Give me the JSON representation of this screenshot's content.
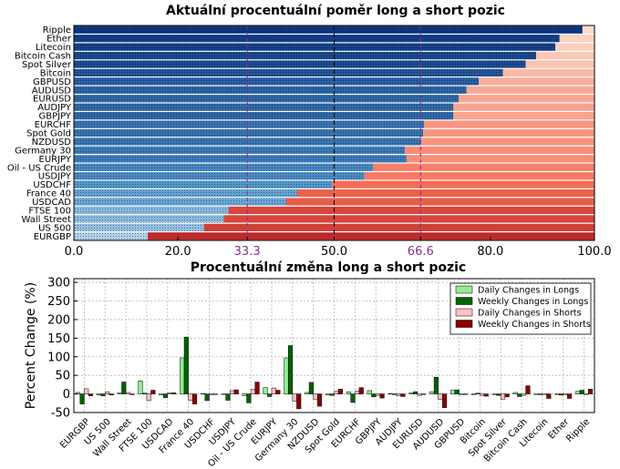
{
  "chart_data": [
    {
      "type": "bar",
      "orientation": "horizontal-stacked",
      "title": "Aktuální procentuální poměr long a short pozic",
      "categories": [
        "Ripple",
        "Ether",
        "Litecoin",
        "Bitcoin Cash",
        "Spot Silver",
        "Bitcoin",
        "GBPUSD",
        "AUDUSD",
        "EURUSD",
        "AUDJPY",
        "GBPJPY",
        "EURCHF",
        "Spot Gold",
        "NZDUSD",
        "Germany 30",
        "EURJPY",
        "Oil - US Crude",
        "USDJPY",
        "USDCHF",
        "France 40",
        "USDCAD",
        "FTSE 100",
        "Wall Street",
        "US 500",
        "EURGBP"
      ],
      "long_percent": [
        97.7,
        93.3,
        92.5,
        88.8,
        86.8,
        82.4,
        77.8,
        75.4,
        73.9,
        72.9,
        72.9,
        67.3,
        67.1,
        66.7,
        63.6,
        63.9,
        57.5,
        55.8,
        49.6,
        42.9,
        40.8,
        29.7,
        28.8,
        25.0,
        14.2
      ],
      "xlim": [
        0,
        100
      ],
      "xticks": [
        "0.0",
        "20.0",
        "33.3",
        "50.0",
        "66.6",
        "80.0",
        "100.0"
      ],
      "reference_lines": [
        33.3,
        50.0,
        66.6
      ],
      "grid": false
    },
    {
      "type": "bar",
      "title": "Procentuální změna long a short pozic",
      "ylabel": "Percent Change (%)",
      "categories": [
        "EURGBP",
        "US 500",
        "Wall Street",
        "FTSE 100",
        "USDCAD",
        "France 40",
        "USDCHF",
        "USDJPY",
        "Oil - US Crude",
        "EURJPY",
        "Germany 30",
        "NZDUSD",
        "Spot Gold",
        "EURCHF",
        "GBPJPY",
        "AUDJPY",
        "EURUSD",
        "AUDUSD",
        "GBPUSD",
        "Bitcoin",
        "Spot Silver",
        "Bitcoin Cash",
        "Litecoin",
        "Ether",
        "Ripple"
      ],
      "ylim": [
        -50,
        310
      ],
      "yticks": [
        -50,
        0,
        50,
        100,
        150,
        200,
        250,
        300
      ],
      "grid": true,
      "legend_position": "top-right",
      "series": [
        {
          "name": "Daily Changes in Longs",
          "color": "#90ee90",
          "values": [
            4,
            -3,
            3,
            35,
            -3,
            97,
            1,
            -1,
            -5,
            17,
            97,
            4,
            -3,
            6,
            9,
            1,
            3,
            6,
            10,
            -2,
            -2,
            4,
            0,
            0,
            7
          ]
        },
        {
          "name": "Weekly Changes in Longs",
          "color": "#006400",
          "values": [
            -27,
            -5,
            32,
            2,
            -10,
            153,
            -18,
            -17,
            -24,
            -7,
            130,
            31,
            -4,
            -23,
            -8,
            -2,
            6,
            45,
            11,
            2,
            -4,
            -7,
            -2,
            -3,
            10
          ]
        },
        {
          "name": "Daily Changes in Shorts",
          "color": "#ffc0cb",
          "values": [
            14,
            6,
            4,
            -18,
            3,
            -17,
            -2,
            9,
            12,
            16,
            -20,
            -14,
            7,
            7,
            -4,
            -5,
            -4,
            -15,
            -2,
            -4,
            -14,
            -4,
            0,
            -1,
            -1
          ]
        },
        {
          "name": "Weekly Changes in Shorts",
          "color": "#8b0000",
          "values": [
            -5,
            -3,
            -2,
            10,
            3,
            -27,
            0,
            11,
            32,
            10,
            -40,
            -33,
            13,
            17,
            -11,
            -7,
            0,
            -37,
            -1,
            -6,
            -8,
            22,
            -12,
            -12,
            13
          ]
        }
      ]
    }
  ]
}
